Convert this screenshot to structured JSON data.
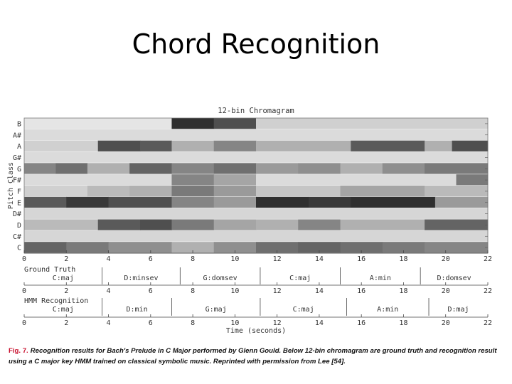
{
  "slide": {
    "title": "Chord Recognition"
  },
  "chart_data": {
    "type": "heatmap",
    "title": "12-bin Chromagram",
    "xlabel": "Time (seconds)",
    "ylabel": "Pitch Class",
    "xlim": [
      0,
      22
    ],
    "x_ticks": [
      "0",
      "2",
      "4",
      "6",
      "8",
      "10",
      "12",
      "14",
      "16",
      "18",
      "20",
      "22"
    ],
    "pitch_classes": [
      "B",
      "A#",
      "A",
      "G#",
      "G",
      "F#",
      "F",
      "E",
      "D#",
      "D",
      "C#",
      "C"
    ],
    "intensity_segments": {
      "B": [
        [
          0,
          7,
          0.05
        ],
        [
          7,
          9,
          0.9
        ],
        [
          9,
          11,
          0.75
        ],
        [
          11,
          22,
          0.15
        ]
      ],
      "A#": [
        [
          0,
          22,
          0.1
        ]
      ],
      "A": [
        [
          0,
          3.5,
          0.15
        ],
        [
          3.5,
          5.5,
          0.75
        ],
        [
          5.5,
          7,
          0.7
        ],
        [
          7,
          9,
          0.3
        ],
        [
          9,
          11,
          0.5
        ],
        [
          11,
          15.5,
          0.3
        ],
        [
          15.5,
          19,
          0.7
        ],
        [
          19,
          20.3,
          0.3
        ],
        [
          20.3,
          22,
          0.75
        ]
      ],
      "G#": [
        [
          0,
          22,
          0.1
        ]
      ],
      "G": [
        [
          0,
          1.5,
          0.5
        ],
        [
          1.5,
          3,
          0.6
        ],
        [
          3,
          5,
          0.3
        ],
        [
          5,
          7,
          0.65
        ],
        [
          7,
          9,
          0.5
        ],
        [
          9,
          11,
          0.6
        ],
        [
          11,
          13,
          0.4
        ],
        [
          13,
          15,
          0.45
        ],
        [
          15,
          17,
          0.3
        ],
        [
          17,
          19,
          0.45
        ],
        [
          19,
          22,
          0.55
        ]
      ],
      "F#": [
        [
          0,
          7,
          0.1
        ],
        [
          7,
          9,
          0.5
        ],
        [
          9,
          11,
          0.35
        ],
        [
          11,
          20.5,
          0.1
        ],
        [
          20.5,
          22,
          0.55
        ]
      ],
      "F": [
        [
          0,
          3,
          0.15
        ],
        [
          3,
          5,
          0.25
        ],
        [
          5,
          7,
          0.3
        ],
        [
          7,
          9,
          0.55
        ],
        [
          9,
          11,
          0.4
        ],
        [
          11,
          15,
          0.2
        ],
        [
          15,
          19,
          0.35
        ],
        [
          19,
          22,
          0.25
        ]
      ],
      "E": [
        [
          0,
          2,
          0.7
        ],
        [
          2,
          4,
          0.85
        ],
        [
          4,
          7,
          0.75
        ],
        [
          7,
          9,
          0.5
        ],
        [
          9,
          11,
          0.4
        ],
        [
          11,
          13.5,
          0.9
        ],
        [
          13.5,
          15.5,
          0.85
        ],
        [
          15.5,
          19.5,
          0.9
        ],
        [
          19.5,
          22,
          0.4
        ]
      ],
      "D#": [
        [
          0,
          22,
          0.12
        ]
      ],
      "D": [
        [
          0,
          3.5,
          0.25
        ],
        [
          3.5,
          5.5,
          0.7
        ],
        [
          5.5,
          7,
          0.75
        ],
        [
          7,
          9,
          0.55
        ],
        [
          9,
          11,
          0.35
        ],
        [
          11,
          13,
          0.3
        ],
        [
          13,
          15,
          0.5
        ],
        [
          15,
          19,
          0.3
        ],
        [
          19,
          22,
          0.65
        ]
      ],
      "C#": [
        [
          0,
          22,
          0.12
        ]
      ],
      "C": [
        [
          0,
          2,
          0.65
        ],
        [
          2,
          4,
          0.55
        ],
        [
          4,
          7,
          0.45
        ],
        [
          7,
          9,
          0.3
        ],
        [
          9,
          11,
          0.45
        ],
        [
          11,
          13,
          0.6
        ],
        [
          13,
          15,
          0.65
        ],
        [
          15,
          17,
          0.6
        ],
        [
          17,
          19,
          0.55
        ],
        [
          19,
          22,
          0.5
        ]
      ]
    },
    "ground_truth": {
      "label": "Ground Truth",
      "segments": [
        {
          "label": "C:maj",
          "start": 0,
          "end": 3.7
        },
        {
          "label": "D:minsev",
          "start": 3.7,
          "end": 7.4
        },
        {
          "label": "G:domsev",
          "start": 7.4,
          "end": 11.2
        },
        {
          "label": "C:maj",
          "start": 11.2,
          "end": 15.0
        },
        {
          "label": "A:min",
          "start": 15.0,
          "end": 18.8
        },
        {
          "label": "D:domsev",
          "start": 18.8,
          "end": 22
        }
      ]
    },
    "hmm_recognition": {
      "label": "HMM Recognition",
      "segments": [
        {
          "label": "C:maj",
          "start": 0,
          "end": 3.7
        },
        {
          "label": "D:min",
          "start": 3.7,
          "end": 7.0
        },
        {
          "label": "G:maj",
          "start": 7.0,
          "end": 11.2
        },
        {
          "label": "C:maj",
          "start": 11.2,
          "end": 15.3
        },
        {
          "label": "A:min",
          "start": 15.3,
          "end": 19.2
        },
        {
          "label": "D:maj",
          "start": 19.2,
          "end": 22
        }
      ]
    }
  },
  "caption": {
    "figure_label": "Fig. 7.",
    "text": "Recognition results for Bach's Prelude in C Major performed by Glenn Gould. Below 12-bin chromagram are ground truth and recognition result using a C major key HMM trained on classical symbolic music. Reprinted with permission from Lee [54]."
  }
}
